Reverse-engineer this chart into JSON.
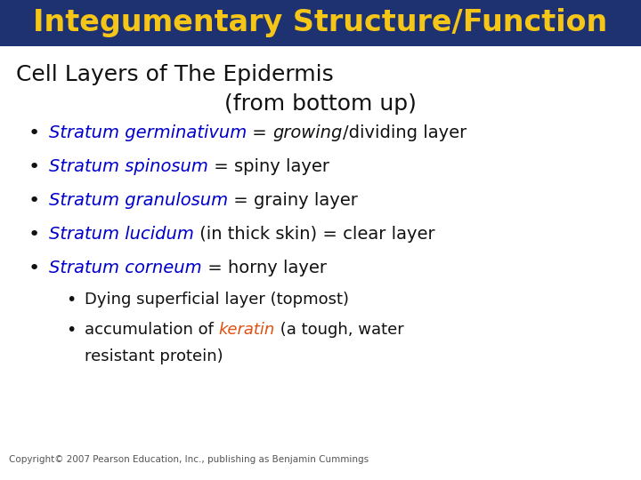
{
  "title": "Integumentary Structure/Function",
  "title_bg": "#1e3170",
  "title_color": "#f5c518",
  "title_fontsize": 24,
  "subtitle1": "Cell Layers of The Epidermis",
  "subtitle2": "(from bottom up)",
  "subtitle_fontsize": 18,
  "subtitle_color": "#111111",
  "bullet_color": "#0000cc",
  "black_color": "#111111",
  "orange_color": "#e05010",
  "body_fontsize": 14,
  "sub_bullet_fontsize": 13,
  "copyright": "Copyright© 2007 Pearson Education, Inc., publishing as Benjamin Cummings",
  "copyright_fontsize": 7.5
}
